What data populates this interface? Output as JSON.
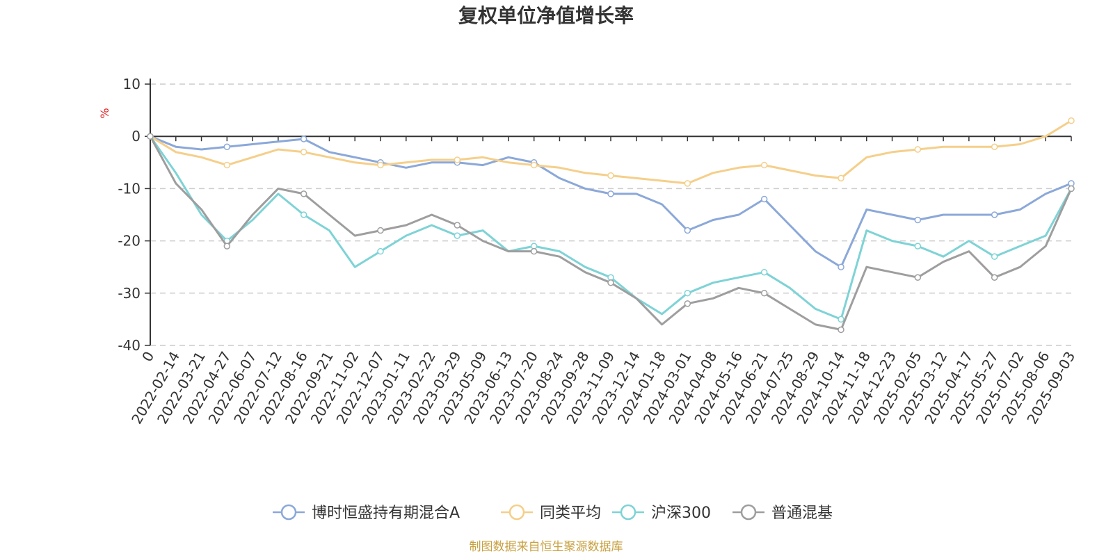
{
  "chart_data": {
    "type": "line",
    "title": "复权单位净值增长率",
    "ylabel": "%",
    "ylim": [
      -40,
      10
    ],
    "yticks": [
      "10",
      "0",
      "-10",
      "-20",
      "-30",
      "-40"
    ],
    "grid": true,
    "legend_position": "bottom",
    "x_tick_labels": [
      "0",
      "2022-02-14",
      "2022-03-21",
      "2022-04-27",
      "2022-06-07",
      "2022-07-12",
      "2022-08-16",
      "2022-09-21",
      "2022-11-02",
      "2022-12-07",
      "2023-01-11",
      "2023-02-22",
      "2023-03-29",
      "2023-05-09",
      "2023-06-13",
      "2023-07-20",
      "2023-08-24",
      "2023-09-28",
      "2023-11-09",
      "2023-12-14",
      "2024-01-18",
      "2024-03-01",
      "2024-04-08",
      "2024-05-16",
      "2024-06-21",
      "2024-07-25",
      "2024-08-29",
      "2024-10-14",
      "2024-11-18",
      "2024-12-23",
      "2025-02-05",
      "2025-03-12",
      "2025-04-17",
      "2025-05-27",
      "2025-07-02",
      "2025-08-06",
      "2025-09-03"
    ],
    "series": [
      {
        "name": "博时恒盛持有期混合A",
        "color": "#8ba8d9",
        "values": [
          0,
          -2,
          -2.5,
          -2,
          -1.5,
          -1,
          -0.5,
          -3,
          -4,
          -5,
          -6,
          -5,
          -5,
          -5.5,
          -4,
          -5,
          -8,
          -10,
          -11,
          -11,
          -13,
          -18,
          -16,
          -15,
          -12,
          -17,
          -22,
          -25,
          -14,
          -15,
          -16,
          -15,
          -15,
          -15,
          -14,
          -11,
          -9
        ]
      },
      {
        "name": "同类平均",
        "color": "#f5cf8a",
        "values": [
          0,
          -3,
          -4,
          -5.5,
          -4,
          -2.5,
          -3,
          -4,
          -5,
          -5.5,
          -5,
          -4.5,
          -4.5,
          -4,
          -5,
          -5.5,
          -6,
          -7,
          -7.5,
          -8,
          -8.5,
          -9,
          -7,
          -6,
          -5.5,
          -6.5,
          -7.5,
          -8,
          -4,
          -3,
          -2.5,
          -2,
          -2,
          -2,
          -1.5,
          0,
          3
        ]
      },
      {
        "name": "沪深300",
        "color": "#7ed3d6",
        "values": [
          0,
          -7,
          -15,
          -20,
          -16,
          -11,
          -15,
          -18,
          -25,
          -22,
          -19,
          -17,
          -19,
          -18,
          -22,
          -21,
          -22,
          -25,
          -27,
          -31,
          -34,
          -30,
          -28,
          -27,
          -26,
          -29,
          -33,
          -35,
          -18,
          -20,
          -21,
          -23,
          -20,
          -23,
          -21,
          -19,
          -10
        ]
      },
      {
        "name": "普通混基",
        "color": "#9e9e9e",
        "values": [
          0,
          -9,
          -14,
          -21,
          -15,
          -10,
          -11,
          -15,
          -19,
          -18,
          -17,
          -15,
          -17,
          -20,
          -22,
          -22,
          -23,
          -26,
          -28,
          -31,
          -36,
          -32,
          -31,
          -29,
          -30,
          -33,
          -36,
          -37,
          -25,
          -26,
          -27,
          -24,
          -22,
          -27,
          -25,
          -21,
          -10
        ]
      }
    ]
  },
  "legend": {
    "items": [
      "博时恒盛持有期混合A",
      "同类平均",
      "沪深300",
      "普通混基"
    ]
  },
  "footer": {
    "source": "制图数据来自恒生聚源数据库"
  }
}
